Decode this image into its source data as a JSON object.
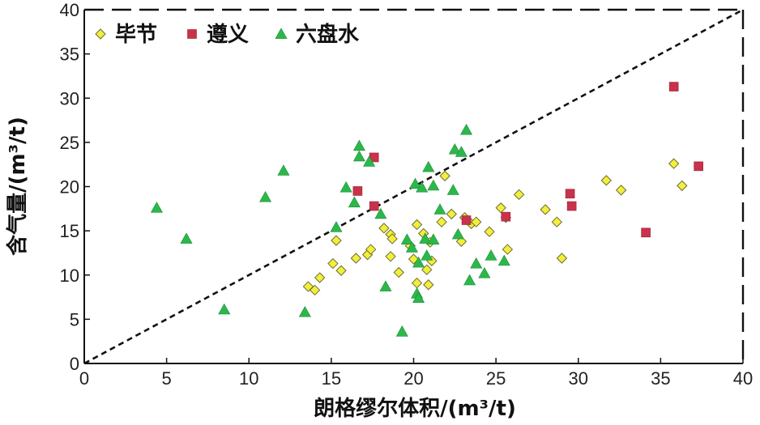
{
  "chart_data": {
    "type": "scatter",
    "title": "",
    "xlabel": "朗格缪尔体积/(m³/t)",
    "ylabel": "含气量/(m³/t)",
    "xlim": [
      0,
      40
    ],
    "ylim": [
      0,
      40
    ],
    "x_ticks": [
      "0",
      "5",
      "10",
      "15",
      "20",
      "25",
      "30",
      "35",
      "40"
    ],
    "y_ticks": [
      "0",
      "5",
      "10",
      "15",
      "20",
      "25",
      "30",
      "35",
      "40"
    ],
    "grid": false,
    "legend_position": "top-left",
    "reference_line": {
      "style": "dashed",
      "from": [
        0,
        0
      ],
      "to": [
        40,
        40
      ]
    },
    "series": [
      {
        "name": "毕节",
        "marker": "diamond",
        "color": "#f2ef3a",
        "points": [
          [
            13.6,
            8.7
          ],
          [
            14.0,
            8.3
          ],
          [
            14.3,
            9.7
          ],
          [
            15.1,
            11.3
          ],
          [
            15.6,
            10.5
          ],
          [
            15.3,
            13.9
          ],
          [
            16.5,
            11.9
          ],
          [
            17.2,
            12.3
          ],
          [
            17.4,
            12.9
          ],
          [
            18.2,
            15.3
          ],
          [
            18.6,
            14.6
          ],
          [
            18.7,
            14.1
          ],
          [
            18.6,
            12.1
          ],
          [
            19.1,
            10.3
          ],
          [
            19.8,
            13.3
          ],
          [
            20.0,
            11.8
          ],
          [
            20.2,
            9.1
          ],
          [
            20.2,
            15.7
          ],
          [
            20.6,
            14.7
          ],
          [
            20.8,
            10.6
          ],
          [
            20.9,
            8.9
          ],
          [
            21.0,
            13.7
          ],
          [
            21.1,
            11.6
          ],
          [
            21.7,
            16.0
          ],
          [
            21.9,
            21.2
          ],
          [
            22.3,
            16.9
          ],
          [
            22.9,
            13.8
          ],
          [
            23.1,
            16.5
          ],
          [
            23.5,
            15.8
          ],
          [
            23.8,
            16.0
          ],
          [
            24.6,
            14.9
          ],
          [
            25.3,
            17.6
          ],
          [
            25.7,
            12.9
          ],
          [
            26.4,
            19.1
          ],
          [
            28.0,
            17.4
          ],
          [
            28.7,
            16.0
          ],
          [
            29.0,
            11.9
          ],
          [
            31.7,
            20.7
          ],
          [
            32.6,
            19.6
          ],
          [
            35.8,
            22.6
          ],
          [
            36.3,
            20.1
          ],
          [
            25.6,
            16.5
          ]
        ]
      },
      {
        "name": "遵义",
        "marker": "square",
        "color": "#c8324a",
        "points": [
          [
            16.6,
            19.5
          ],
          [
            17.6,
            23.3
          ],
          [
            17.6,
            17.8
          ],
          [
            23.2,
            16.2
          ],
          [
            25.6,
            16.6
          ],
          [
            29.5,
            19.2
          ],
          [
            29.6,
            17.8
          ],
          [
            34.1,
            14.8
          ],
          [
            35.8,
            31.3
          ],
          [
            37.3,
            22.3
          ]
        ]
      },
      {
        "name": "六盘水",
        "marker": "triangle",
        "color": "#2bb84b",
        "points": [
          [
            4.4,
            17.6
          ],
          [
            6.2,
            14.1
          ],
          [
            8.5,
            6.1
          ],
          [
            11.0,
            18.8
          ],
          [
            12.1,
            21.8
          ],
          [
            13.4,
            5.8
          ],
          [
            15.3,
            15.4
          ],
          [
            15.9,
            19.9
          ],
          [
            16.4,
            18.2
          ],
          [
            16.7,
            24.6
          ],
          [
            16.7,
            23.4
          ],
          [
            17.3,
            22.8
          ],
          [
            18.0,
            16.9
          ],
          [
            18.3,
            8.7
          ],
          [
            19.3,
            3.6
          ],
          [
            19.6,
            14.0
          ],
          [
            19.9,
            13.1
          ],
          [
            20.1,
            20.3
          ],
          [
            20.3,
            11.4
          ],
          [
            20.2,
            7.9
          ],
          [
            20.3,
            7.4
          ],
          [
            20.5,
            19.9
          ],
          [
            20.7,
            14.1
          ],
          [
            20.8,
            12.2
          ],
          [
            20.9,
            22.2
          ],
          [
            21.2,
            14.0
          ],
          [
            21.6,
            17.4
          ],
          [
            21.2,
            20.1
          ],
          [
            22.4,
            19.6
          ],
          [
            22.5,
            24.2
          ],
          [
            22.7,
            14.6
          ],
          [
            22.9,
            23.9
          ],
          [
            23.2,
            26.4
          ],
          [
            23.4,
            9.4
          ],
          [
            23.8,
            11.3
          ],
          [
            24.3,
            10.2
          ],
          [
            24.7,
            12.2
          ],
          [
            25.5,
            11.6
          ]
        ]
      }
    ]
  }
}
